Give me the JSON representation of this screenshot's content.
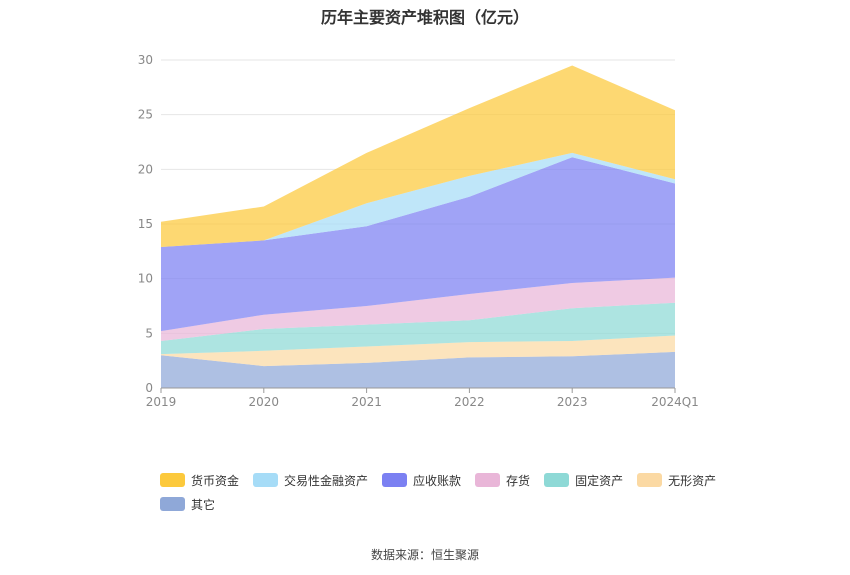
{
  "title": "历年主要资产堆积图（亿元）",
  "source": "数据来源：恒生聚源",
  "chart_data": {
    "type": "area",
    "stacked": true,
    "categories": [
      "2019",
      "2020",
      "2021",
      "2022",
      "2023",
      "2024Q1"
    ],
    "ylim": [
      0,
      30
    ],
    "yticks": [
      0,
      5,
      10,
      15,
      20,
      25,
      30
    ],
    "grid": true,
    "legend_position": "bottom",
    "series": [
      {
        "name": "其它",
        "color": "#8fa8d8",
        "values": [
          3.0,
          2.0,
          2.3,
          2.8,
          2.9,
          3.3
        ]
      },
      {
        "name": "无形资产",
        "color": "#fbd9a3",
        "values": [
          0.1,
          1.4,
          1.5,
          1.4,
          1.4,
          1.5
        ]
      },
      {
        "name": "固定资产",
        "color": "#8ed9d6",
        "values": [
          1.2,
          2.0,
          2.0,
          2.0,
          3.0,
          3.0
        ]
      },
      {
        "name": "存货",
        "color": "#e9b6d8",
        "values": [
          0.9,
          1.3,
          1.7,
          2.4,
          2.3,
          2.3
        ]
      },
      {
        "name": "应收账款",
        "color": "#7b80f2",
        "values": [
          7.7,
          6.8,
          7.3,
          8.9,
          11.5,
          8.6
        ]
      },
      {
        "name": "交易性金融资产",
        "color": "#a6dcf7",
        "values": [
          0.0,
          0.0,
          2.1,
          1.9,
          0.4,
          0.4
        ]
      },
      {
        "name": "货币资金",
        "color": "#fcc93c",
        "values": [
          2.3,
          3.1,
          4.6,
          6.2,
          8.0,
          6.3
        ]
      }
    ]
  },
  "legend_order": [
    "货币资金",
    "交易性金融资产",
    "应收账款",
    "存货",
    "固定资产",
    "无形资产",
    "其它"
  ]
}
